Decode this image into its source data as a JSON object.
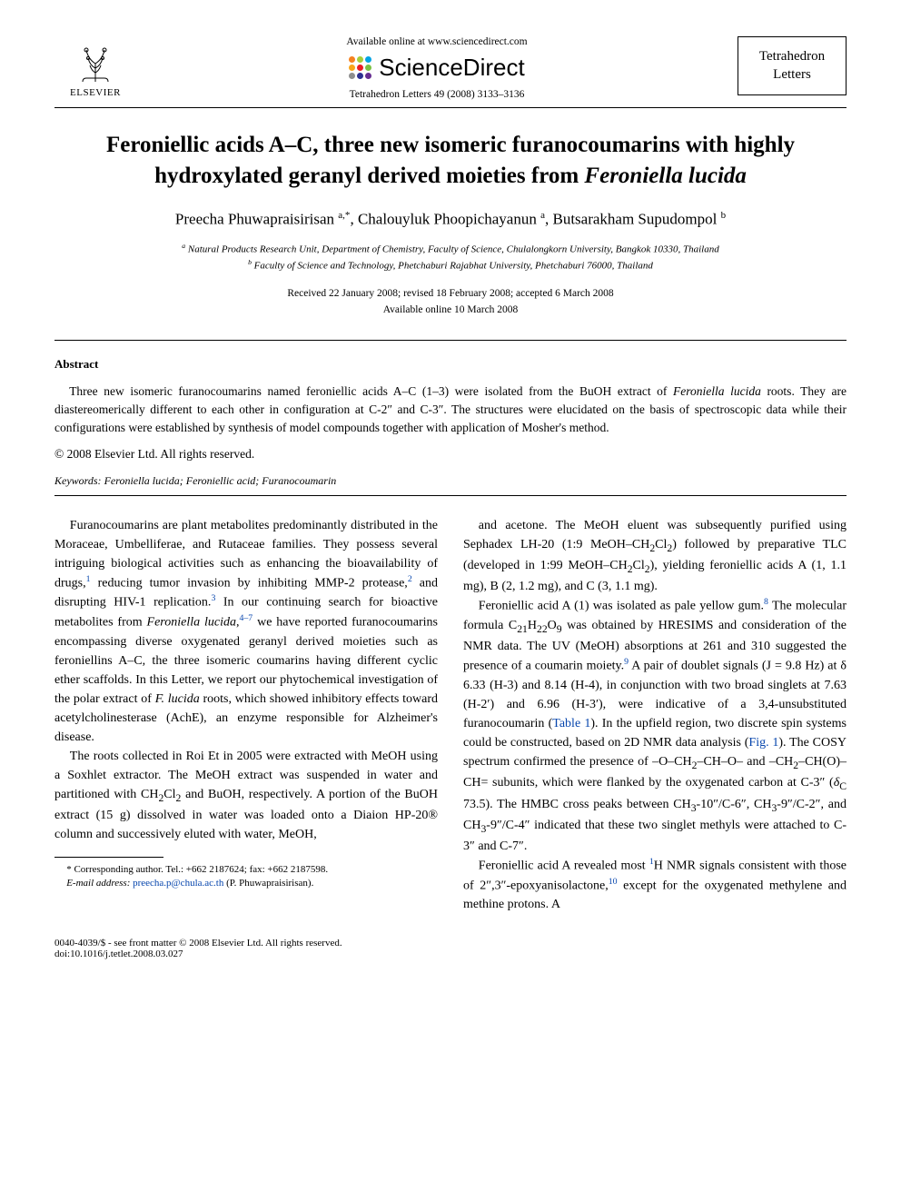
{
  "header": {
    "publisher_label": "ELSEVIER",
    "available_text": "Available online at www.sciencedirect.com",
    "sd_brand": "ScienceDirect",
    "sd_dot_colors": [
      "#f58220",
      "#a6ce39",
      "#00a4e4",
      "#f9a61a",
      "#ec1c24",
      "#7ac143",
      "#8e8e8e",
      "#2e3192",
      "#662d91"
    ],
    "journal_ref": "Tetrahedron Letters 49 (2008) 3133–3136",
    "journal_name_line1": "Tetrahedron",
    "journal_name_line2": "Letters"
  },
  "title": "Feroniellic acids A–C, three new isomeric furanocoumarins with highly hydroxylated geranyl derived moieties from Feroniella lucida",
  "authors_html": "Preecha Phuwapraisirisan <sup>a,*</sup>, Chalouyluk Phoopichayanun <sup>a</sup>, Butsarakham Supudompol <sup>b</sup>",
  "affiliations": {
    "a": "Natural Products Research Unit, Department of Chemistry, Faculty of Science, Chulalongkorn University, Bangkok 10330, Thailand",
    "b": "Faculty of Science and Technology, Phetchaburi Rajabhat University, Phetchaburi 76000, Thailand"
  },
  "dates": {
    "line1": "Received 22 January 2008; revised 18 February 2008; accepted 6 March 2008",
    "line2": "Available online 10 March 2008"
  },
  "abstract": {
    "heading": "Abstract",
    "text": "Three new isomeric furanocoumarins named feroniellic acids A–C (1–3) were isolated from the BuOH extract of Feroniella lucida roots. They are diastereomerically different to each other in configuration at C-2″ and C-3″. The structures were elucidated on the basis of spectroscopic data while their configurations were established by synthesis of model compounds together with application of Mosher's method.",
    "copyright": "© 2008 Elsevier Ltd. All rights reserved."
  },
  "keywords": {
    "label": "Keywords:",
    "text": "Feroniella lucida; Feroniellic acid; Furanocoumarin"
  },
  "body": {
    "col1": {
      "p1": "Furanocoumarins are plant metabolites predominantly distributed in the Moraceae, Umbelliferae, and Rutaceae families. They possess several intriguing biological activities such as enhancing the bioavailability of drugs,¹ reducing tumor invasion by inhibiting MMP-2 protease,² and disrupting HIV-1 replication.³ In our continuing search for bioactive metabolites from Feroniella lucida,⁴⁻⁷ we have reported furanocoumarins encompassing diverse oxygenated geranyl derived moieties such as feroniellins A–C, the three isomeric coumarins having different cyclic ether scaffolds. In this Letter, we report our phytochemical investigation of the polar extract of F. lucida roots, which showed inhibitory effects toward acetylcholinesterase (AchE), an enzyme responsible for Alzheimer's disease.",
      "p2": "The roots collected in Roi Et in 2005 were extracted with MeOH using a Soxhlet extractor. The MeOH extract was suspended in water and partitioned with CH₂Cl₂ and BuOH, respectively. A portion of the BuOH extract (15 g) dissolved in water was loaded onto a Diaion HP-20® column and successively eluted with water, MeOH,"
    },
    "col2": {
      "p1": "and acetone. The MeOH eluent was subsequently purified using Sephadex LH-20 (1:9 MeOH–CH₂Cl₂) followed by preparative TLC (developed in 1:99 MeOH–CH₂Cl₂), yielding feroniellic acids A (1, 1.1 mg), B (2, 1.2 mg), and C (3, 1.1 mg).",
      "p2": "Feroniellic acid A (1) was isolated as pale yellow gum.⁸ The molecular formula C₂₁H₂₂O₉ was obtained by HRESIMS and consideration of the NMR data. The UV (MeOH) absorptions at 261 and 310 suggested the presence of a coumarin moiety.⁹ A pair of doublet signals (J = 9.8 Hz) at δ 6.33 (H-3) and 8.14 (H-4), in conjunction with two broad singlets at 7.63 (H-2′) and 6.96 (H-3′), were indicative of a 3,4-unsubstituted furanocoumarin (Table 1). In the upfield region, two discrete spin systems could be constructed, based on 2D NMR data analysis (Fig. 1). The COSY spectrum confirmed the presence of –O–CH₂–CH–O– and –CH₂–CH(O)–CH= subunits, which were flanked by the oxygenated carbon at C-3″ (δC 73.5). The HMBC cross peaks between CH₃-10″/C-6″, CH₃-9″/C-2″, and CH₃-9″/C-4″ indicated that these two singlet methyls were attached to C-3″ and C-7″.",
      "p3": "Feroniellic acid A revealed most ¹H NMR signals consistent with those of 2″,3″-epoxyanisolactone,¹⁰ except for the oxygenated methylene and methine protons. A"
    }
  },
  "footnote": {
    "corr": "* Corresponding author. Tel.: +662 2187624; fax: +662 2187598.",
    "email_label": "E-mail address:",
    "email": "preecha.p@chula.ac.th",
    "email_name": "(P. Phuwapraisirisan)."
  },
  "footer": {
    "left_line1": "0040-4039/$ - see front matter © 2008 Elsevier Ltd. All rights reserved.",
    "left_line2": "doi:10.1016/j.tetlet.2008.03.027"
  },
  "colors": {
    "text": "#000000",
    "link": "#0645ad",
    "background": "#ffffff",
    "border": "#000000"
  },
  "typography": {
    "body_font": "Times New Roman",
    "title_size_pt": 19,
    "author_size_pt": 13,
    "body_size_pt": 10.5,
    "abstract_size_pt": 10,
    "footnote_size_pt": 8
  }
}
